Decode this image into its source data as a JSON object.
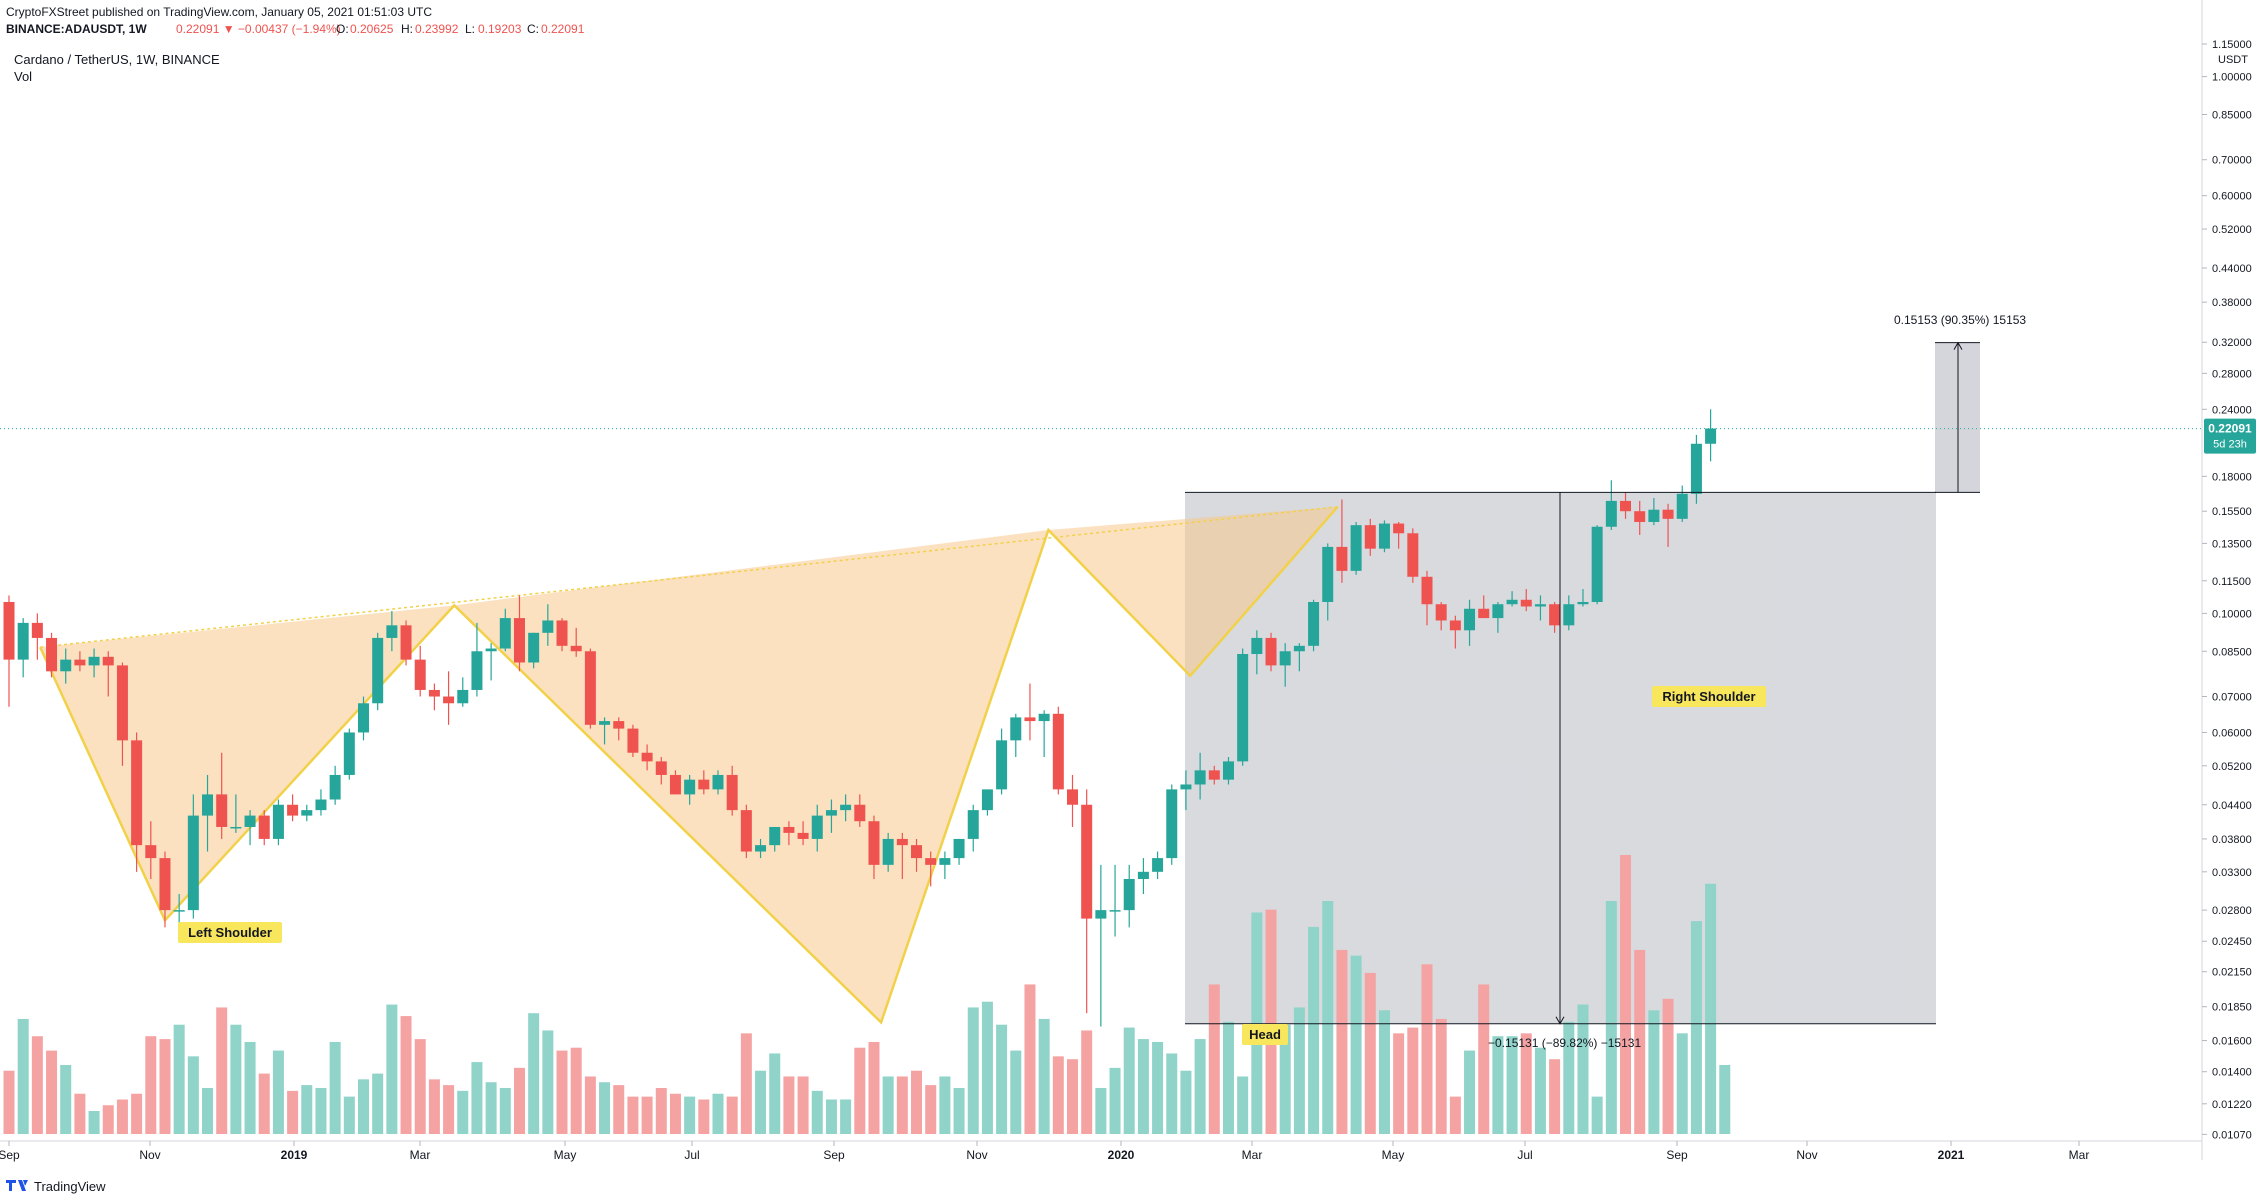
{
  "header": {
    "publish_line": "CryptoFXStreet published on TradingView.com, January 05, 2021 01:51:03 UTC",
    "symbol": "BINANCE:ADAUSDT, 1W",
    "change": "0.22091 ▼ −0.00437 (−1.94%)",
    "open_label": "O:",
    "open": "0.20625",
    "high_label": "H:",
    "high": "0.23992",
    "low_label": "L:",
    "low": "0.19203",
    "close_label": "C:",
    "close": "0.22091",
    "legend_title": "Cardano / TetherUS, 1W, BINANCE",
    "legend_vol": "Vol"
  },
  "footer": {
    "brand": "TradingView"
  },
  "price_axis": {
    "currency": "USDT",
    "ticks": [
      "1.15000",
      "1.00000",
      "0.85000",
      "0.70000",
      "0.60000",
      "0.52000",
      "0.44000",
      "0.38000",
      "0.32000",
      "0.28000",
      "0.24000",
      "0.18000",
      "0.15500",
      "0.13500",
      "0.11500",
      "0.10000",
      "0.08500",
      "0.07000",
      "0.06000",
      "0.05200",
      "0.04400",
      "0.03800",
      "0.03300",
      "0.02800",
      "0.02450",
      "0.02150",
      "0.01850",
      "0.01600",
      "0.01400",
      "0.01220",
      "0.01070"
    ],
    "last_price": "0.22091",
    "countdown": "5d 23h"
  },
  "time_axis": {
    "labels": [
      "Sep",
      "Nov",
      "2019",
      "Mar",
      "May",
      "Jul",
      "Sep",
      "Nov",
      "2020",
      "Mar",
      "May",
      "Jul",
      "Sep",
      "Nov",
      "2021",
      "Mar"
    ]
  },
  "annotations": {
    "left_shoulder": "Left Shoulder",
    "head": "Head",
    "right_shoulder": "Right Shoulder",
    "measure_up": "0.15153 (90.35%) 15153",
    "measure_down": "−0.15131 (−89.82%) −15131"
  },
  "colors": {
    "up": "#26a69a",
    "down": "#ef5350",
    "pattern_line": "#f2d14a",
    "pattern_fill": "#f8c88c",
    "box_fill": "#b2b5be",
    "label_bg": "#f8e65c"
  },
  "chart_data": {
    "type": "candlestick",
    "title": "Cardano / TetherUS, 1W, BINANCE",
    "y_scale": "log",
    "ylim": [
      0.0104,
      1.16
    ],
    "pattern": "inverse head and shoulders",
    "neckline": [
      0.0865,
      0.158
    ],
    "target_move": {
      "from": 0.168,
      "to": 0.3195,
      "change": "0.15153 (90.35%)"
    },
    "ohlc": [
      [
        0.105,
        0.108,
        0.067,
        0.082
      ],
      [
        0.082,
        0.098,
        0.076,
        0.096
      ],
      [
        0.096,
        0.1,
        0.082,
        0.09
      ],
      [
        0.09,
        0.092,
        0.076,
        0.078
      ],
      [
        0.078,
        0.086,
        0.074,
        0.082
      ],
      [
        0.082,
        0.085,
        0.078,
        0.08
      ],
      [
        0.08,
        0.086,
        0.076,
        0.083
      ],
      [
        0.083,
        0.085,
        0.07,
        0.08
      ],
      [
        0.08,
        0.081,
        0.052,
        0.058
      ],
      [
        0.058,
        0.06,
        0.033,
        0.037
      ],
      [
        0.037,
        0.041,
        0.032,
        0.035
      ],
      [
        0.035,
        0.036,
        0.026,
        0.028
      ],
      [
        0.028,
        0.03,
        0.026,
        0.028
      ],
      [
        0.028,
        0.046,
        0.027,
        0.042
      ],
      [
        0.042,
        0.05,
        0.036,
        0.046
      ],
      [
        0.046,
        0.055,
        0.038,
        0.04
      ],
      [
        0.04,
        0.046,
        0.039,
        0.04
      ],
      [
        0.04,
        0.043,
        0.037,
        0.042
      ],
      [
        0.042,
        0.043,
        0.037,
        0.038
      ],
      [
        0.038,
        0.045,
        0.037,
        0.044
      ],
      [
        0.044,
        0.046,
        0.041,
        0.042
      ],
      [
        0.042,
        0.044,
        0.041,
        0.043
      ],
      [
        0.043,
        0.047,
        0.042,
        0.045
      ],
      [
        0.045,
        0.052,
        0.044,
        0.05
      ],
      [
        0.05,
        0.061,
        0.049,
        0.06
      ],
      [
        0.06,
        0.07,
        0.058,
        0.068
      ],
      [
        0.068,
        0.092,
        0.066,
        0.09
      ],
      [
        0.09,
        0.101,
        0.085,
        0.095
      ],
      [
        0.095,
        0.097,
        0.08,
        0.082
      ],
      [
        0.082,
        0.087,
        0.07,
        0.072
      ],
      [
        0.072,
        0.074,
        0.066,
        0.07
      ],
      [
        0.07,
        0.078,
        0.062,
        0.068
      ],
      [
        0.068,
        0.076,
        0.067,
        0.072
      ],
      [
        0.072,
        0.096,
        0.07,
        0.085
      ],
      [
        0.085,
        0.088,
        0.075,
        0.086
      ],
      [
        0.086,
        0.102,
        0.085,
        0.098
      ],
      [
        0.098,
        0.108,
        0.078,
        0.081
      ],
      [
        0.081,
        0.092,
        0.079,
        0.092
      ],
      [
        0.092,
        0.104,
        0.087,
        0.097
      ],
      [
        0.097,
        0.098,
        0.085,
        0.087
      ],
      [
        0.087,
        0.094,
        0.083,
        0.085
      ],
      [
        0.085,
        0.086,
        0.061,
        0.062
      ],
      [
        0.062,
        0.064,
        0.057,
        0.063
      ],
      [
        0.063,
        0.064,
        0.058,
        0.061
      ],
      [
        0.061,
        0.062,
        0.054,
        0.055
      ],
      [
        0.055,
        0.057,
        0.051,
        0.053
      ],
      [
        0.053,
        0.054,
        0.048,
        0.05
      ],
      [
        0.05,
        0.051,
        0.046,
        0.046
      ],
      [
        0.046,
        0.05,
        0.044,
        0.049
      ],
      [
        0.049,
        0.051,
        0.046,
        0.047
      ],
      [
        0.047,
        0.051,
        0.046,
        0.05
      ],
      [
        0.05,
        0.052,
        0.042,
        0.043
      ],
      [
        0.043,
        0.044,
        0.035,
        0.036
      ],
      [
        0.036,
        0.038,
        0.035,
        0.037
      ],
      [
        0.037,
        0.04,
        0.036,
        0.04
      ],
      [
        0.04,
        0.041,
        0.037,
        0.039
      ],
      [
        0.039,
        0.041,
        0.037,
        0.038
      ],
      [
        0.038,
        0.044,
        0.036,
        0.042
      ],
      [
        0.042,
        0.045,
        0.039,
        0.043
      ],
      [
        0.043,
        0.046,
        0.041,
        0.044
      ],
      [
        0.044,
        0.046,
        0.04,
        0.041
      ],
      [
        0.041,
        0.042,
        0.032,
        0.034
      ],
      [
        0.034,
        0.039,
        0.033,
        0.038
      ],
      [
        0.038,
        0.039,
        0.032,
        0.037
      ],
      [
        0.037,
        0.038,
        0.033,
        0.035
      ],
      [
        0.035,
        0.036,
        0.031,
        0.034
      ],
      [
        0.034,
        0.036,
        0.032,
        0.035
      ],
      [
        0.035,
        0.038,
        0.034,
        0.038
      ],
      [
        0.038,
        0.044,
        0.036,
        0.043
      ],
      [
        0.043,
        0.047,
        0.042,
        0.047
      ],
      [
        0.047,
        0.061,
        0.046,
        0.058
      ],
      [
        0.058,
        0.065,
        0.054,
        0.064
      ],
      [
        0.064,
        0.074,
        0.058,
        0.063
      ],
      [
        0.063,
        0.066,
        0.054,
        0.065
      ],
      [
        0.065,
        0.067,
        0.046,
        0.047
      ],
      [
        0.047,
        0.05,
        0.04,
        0.044
      ],
      [
        0.044,
        0.047,
        0.018,
        0.027
      ],
      [
        0.027,
        0.034,
        0.017,
        0.028
      ],
      [
        0.028,
        0.034,
        0.025,
        0.028
      ],
      [
        0.028,
        0.034,
        0.026,
        0.032
      ],
      [
        0.032,
        0.035,
        0.03,
        0.033
      ],
      [
        0.033,
        0.036,
        0.032,
        0.035
      ],
      [
        0.035,
        0.048,
        0.034,
        0.047
      ],
      [
        0.047,
        0.051,
        0.043,
        0.048
      ],
      [
        0.048,
        0.055,
        0.045,
        0.051
      ],
      [
        0.051,
        0.052,
        0.048,
        0.049
      ],
      [
        0.049,
        0.054,
        0.048,
        0.053
      ],
      [
        0.053,
        0.086,
        0.052,
        0.084
      ],
      [
        0.084,
        0.093,
        0.077,
        0.09
      ],
      [
        0.09,
        0.092,
        0.078,
        0.08
      ],
      [
        0.08,
        0.088,
        0.073,
        0.085
      ],
      [
        0.085,
        0.088,
        0.078,
        0.087
      ],
      [
        0.087,
        0.106,
        0.085,
        0.105
      ],
      [
        0.105,
        0.135,
        0.097,
        0.133
      ],
      [
        0.133,
        0.163,
        0.114,
        0.12
      ],
      [
        0.12,
        0.148,
        0.118,
        0.146
      ],
      [
        0.146,
        0.15,
        0.128,
        0.132
      ],
      [
        0.132,
        0.149,
        0.13,
        0.147
      ],
      [
        0.147,
        0.148,
        0.132,
        0.141
      ],
      [
        0.141,
        0.144,
        0.114,
        0.117
      ],
      [
        0.117,
        0.12,
        0.095,
        0.104
      ],
      [
        0.104,
        0.105,
        0.093,
        0.097
      ],
      [
        0.097,
        0.099,
        0.086,
        0.093
      ],
      [
        0.093,
        0.106,
        0.087,
        0.102
      ],
      [
        0.102,
        0.108,
        0.098,
        0.098
      ],
      [
        0.098,
        0.105,
        0.092,
        0.104
      ],
      [
        0.104,
        0.11,
        0.103,
        0.106
      ],
      [
        0.106,
        0.111,
        0.101,
        0.103
      ],
      [
        0.103,
        0.108,
        0.097,
        0.104
      ],
      [
        0.104,
        0.105,
        0.092,
        0.095
      ],
      [
        0.095,
        0.108,
        0.093,
        0.104
      ],
      [
        0.104,
        0.111,
        0.103,
        0.105
      ],
      [
        0.105,
        0.146,
        0.104,
        0.145
      ],
      [
        0.145,
        0.177,
        0.143,
        0.162
      ],
      [
        0.162,
        0.168,
        0.15,
        0.155
      ],
      [
        0.155,
        0.162,
        0.14,
        0.148
      ],
      [
        0.148,
        0.164,
        0.146,
        0.156
      ],
      [
        0.156,
        0.16,
        0.133,
        0.15
      ],
      [
        0.15,
        0.173,
        0.148,
        0.167
      ],
      [
        0.167,
        0.215,
        0.16,
        0.207
      ],
      [
        0.207,
        0.24,
        0.192,
        0.221
      ]
    ],
    "volume": [
      22,
      40,
      34,
      29,
      24,
      14,
      8,
      10,
      12,
      14,
      34,
      33,
      38,
      27,
      16,
      44,
      38,
      32,
      21,
      29,
      15,
      17,
      16,
      32,
      13,
      19,
      21,
      45,
      41,
      33,
      19,
      17,
      15,
      25,
      18,
      16,
      23,
      42,
      36,
      29,
      30,
      20,
      18,
      17,
      13,
      13,
      16,
      14,
      13,
      12,
      14,
      13,
      35,
      22,
      28,
      20,
      20,
      15,
      12,
      12,
      30,
      32,
      20,
      20,
      22,
      17,
      20,
      16,
      44,
      46,
      38,
      29,
      52,
      40,
      27,
      26,
      36,
      16,
      23,
      37,
      33,
      32,
      28,
      22,
      33,
      52,
      39,
      20,
      77,
      78,
      38,
      44,
      72,
      81,
      64,
      62,
      56,
      43,
      35,
      37,
      59,
      40,
      13,
      29,
      52,
      34,
      34,
      35,
      30,
      26,
      39,
      45,
      13,
      81,
      97,
      64,
      43,
      47,
      35,
      74,
      87,
      24
    ]
  }
}
